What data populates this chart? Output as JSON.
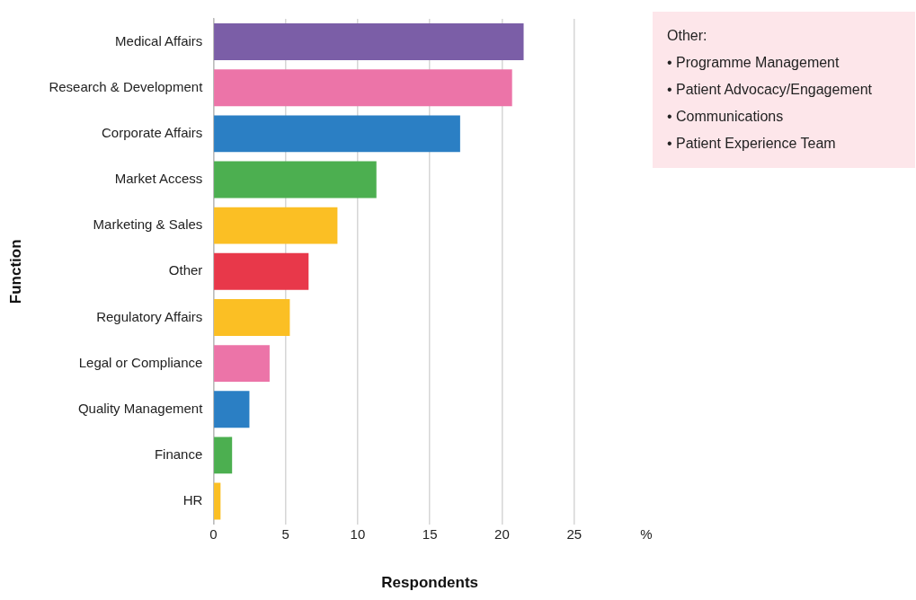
{
  "chart_data": {
    "type": "bar",
    "orientation": "horizontal",
    "xlabel": "Respondents",
    "ylabel": "Function",
    "categories": [
      "Medical Affairs",
      "Research & Development",
      "Corporate Affairs",
      "Market Access",
      "Marketing & Sales",
      "Other",
      "Regulatory Affairs",
      "Legal or Compliance",
      "Quality Management",
      "Finance",
      "HR"
    ],
    "values": [
      21.5,
      20.7,
      17.1,
      11.3,
      8.6,
      6.6,
      5.3,
      3.9,
      2.5,
      1.3,
      0.5
    ],
    "colors": [
      "#7b5ea7",
      "#ec74a8",
      "#2b7fc4",
      "#4caf50",
      "#fbbf24",
      "#e8384a",
      "#fbbf24",
      "#ec74a8",
      "#2b7fc4",
      "#4caf50",
      "#fbbf24"
    ],
    "xlim": [
      0,
      30
    ],
    "xticks": [
      0,
      5,
      10,
      15,
      20,
      25,
      {
        "value": 30,
        "label": "%"
      }
    ],
    "grid": "x",
    "legend": false,
    "annotations": [
      "Other:",
      "• Programme Management",
      "• Patient Advocacy/Engagement",
      "• Communications",
      "• Patient Experience Team"
    ]
  }
}
